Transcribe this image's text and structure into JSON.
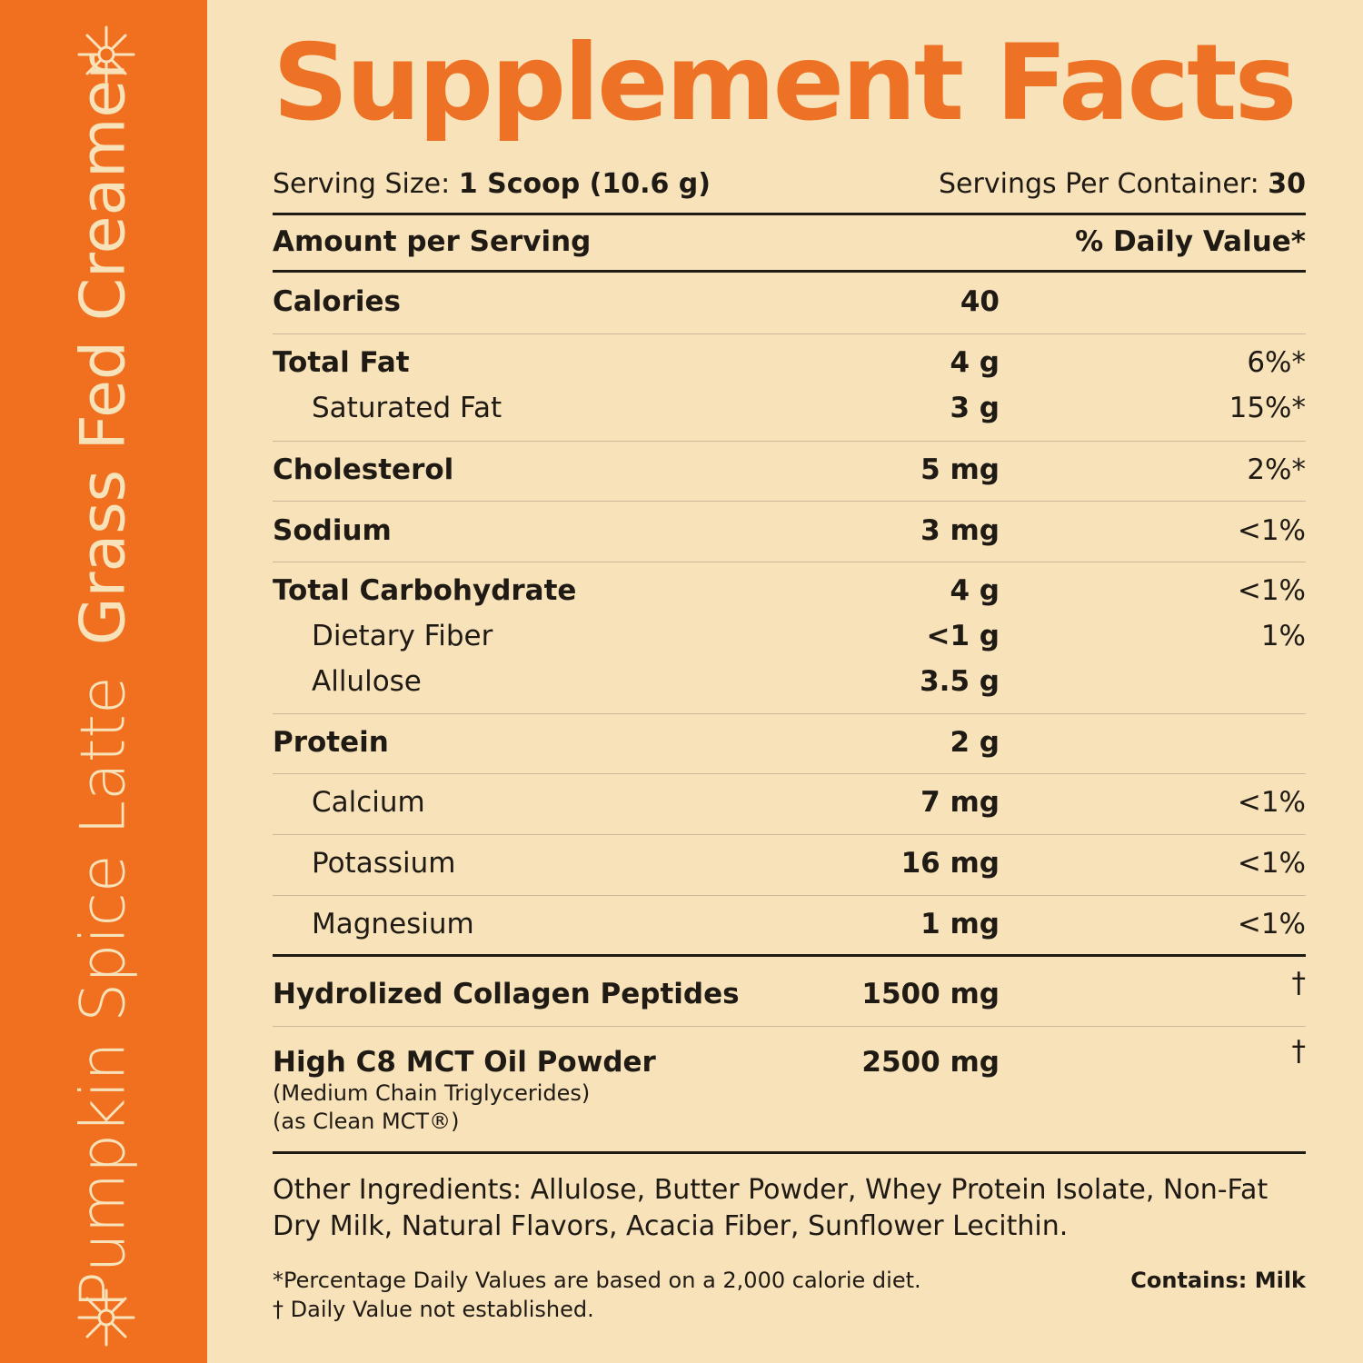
{
  "sidebar": {
    "flavor": "Pumpkin Spice Latte",
    "product": "Grass Fed Creamer",
    "colors": {
      "background": "#f07020",
      "text": "#f7e2b9"
    },
    "decor_icon": "asterisk-star-icon"
  },
  "label": {
    "title": "Supplement Facts",
    "serving_size_label": "Serving Size:",
    "serving_size_value": "1 Scoop (10.6 g)",
    "servings_label": "Servings Per Container:",
    "servings_value": "30",
    "amount_header": "Amount per Serving",
    "dv_header": "% Daily Value*",
    "rows": [
      {
        "name": "Calories",
        "amount": "40",
        "dv": ""
      },
      {
        "name": "Total Fat",
        "amount": "4 g",
        "dv": "6%*"
      },
      {
        "name": "Saturated Fat",
        "amount": "3 g",
        "dv": "15%*"
      },
      {
        "name": "Cholesterol",
        "amount": "5 mg",
        "dv": "2%*"
      },
      {
        "name": "Sodium",
        "amount": "3 mg",
        "dv": "<1%"
      },
      {
        "name": "Total Carbohydrate",
        "amount": "4 g",
        "dv": "<1%"
      },
      {
        "name": "Dietary Fiber",
        "amount": "<1 g",
        "dv": "1%"
      },
      {
        "name": "Allulose",
        "amount": "3.5 g",
        "dv": ""
      },
      {
        "name": "Protein",
        "amount": "2 g",
        "dv": ""
      },
      {
        "name": "Calcium",
        "amount": "7 mg",
        "dv": "<1%"
      },
      {
        "name": "Potassium",
        "amount": "16 mg",
        "dv": "<1%"
      },
      {
        "name": "Magnesium",
        "amount": "1 mg",
        "dv": "<1%"
      },
      {
        "name": "Hydrolized Collagen Peptides",
        "amount": "1500 mg",
        "dv": "†"
      },
      {
        "name": "High C8 MCT Oil Powder",
        "amount": "2500 mg",
        "dv": "†"
      }
    ],
    "mct_note_1": "(Medium Chain Triglycerides)",
    "mct_note_2": "(as Clean MCT®)",
    "other_ingredients": "Other Ingredients: Allulose, Butter Powder, Whey Protein Isolate, Non-Fat Dry Milk, Natural Flavors, Acacia Fiber, Sunflower Lecithin.",
    "footnote_1": "*Percentage Daily Values are based on a 2,000 calorie diet.",
    "footnote_2": "† Daily Value not established.",
    "contains": "Contains: Milk",
    "accent_color": "#ee7225"
  }
}
